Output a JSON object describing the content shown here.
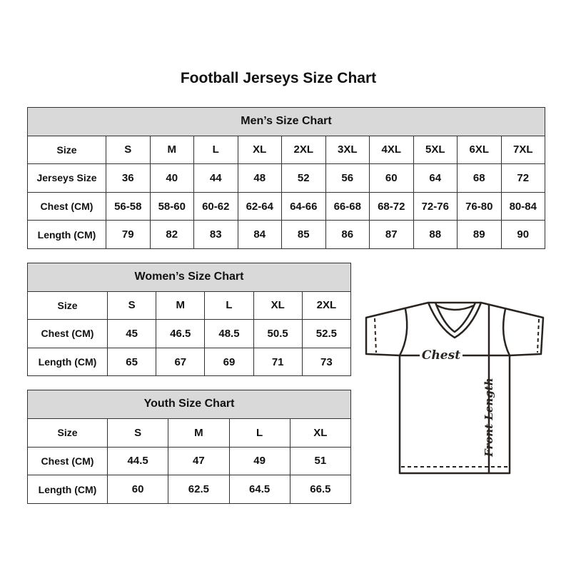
{
  "title": "Football Jerseys Size Chart",
  "men": {
    "caption": "Men’s Size Chart",
    "rows": [
      {
        "label": "Size",
        "values": [
          "S",
          "M",
          "L",
          "XL",
          "2XL",
          "3XL",
          "4XL",
          "5XL",
          "6XL",
          "7XL"
        ]
      },
      {
        "label": "Jerseys Size",
        "values": [
          "36",
          "40",
          "44",
          "48",
          "52",
          "56",
          "60",
          "64",
          "68",
          "72"
        ]
      },
      {
        "label": "Chest (CM)",
        "values": [
          "56-58",
          "58-60",
          "60-62",
          "62-64",
          "64-66",
          "66-68",
          "68-72",
          "72-76",
          "76-80",
          "80-84"
        ]
      },
      {
        "label": "Length (CM)",
        "values": [
          "79",
          "82",
          "83",
          "84",
          "85",
          "86",
          "87",
          "88",
          "89",
          "90"
        ]
      }
    ]
  },
  "women": {
    "caption": "Women’s Size Chart",
    "rows": [
      {
        "label": "Size",
        "values": [
          "S",
          "M",
          "L",
          "XL",
          "2XL"
        ]
      },
      {
        "label": "Chest (CM)",
        "values": [
          "45",
          "46.5",
          "48.5",
          "50.5",
          "52.5"
        ]
      },
      {
        "label": "Length (CM)",
        "values": [
          "65",
          "67",
          "69",
          "71",
          "73"
        ]
      }
    ]
  },
  "youth": {
    "caption": "Youth Size Chart",
    "rows": [
      {
        "label": "Size",
        "values": [
          "S",
          "M",
          "L",
          "XL"
        ]
      },
      {
        "label": "Chest (CM)",
        "values": [
          "44.5",
          "47",
          "49",
          "51"
        ]
      },
      {
        "label": "Length (CM)",
        "values": [
          "60",
          "62.5",
          "64.5",
          "66.5"
        ]
      }
    ]
  },
  "diagram": {
    "chest_label": "Chest",
    "length_label": "Front Length"
  },
  "colors": {
    "header_bg": "#d9d9d9",
    "border": "#333333"
  }
}
